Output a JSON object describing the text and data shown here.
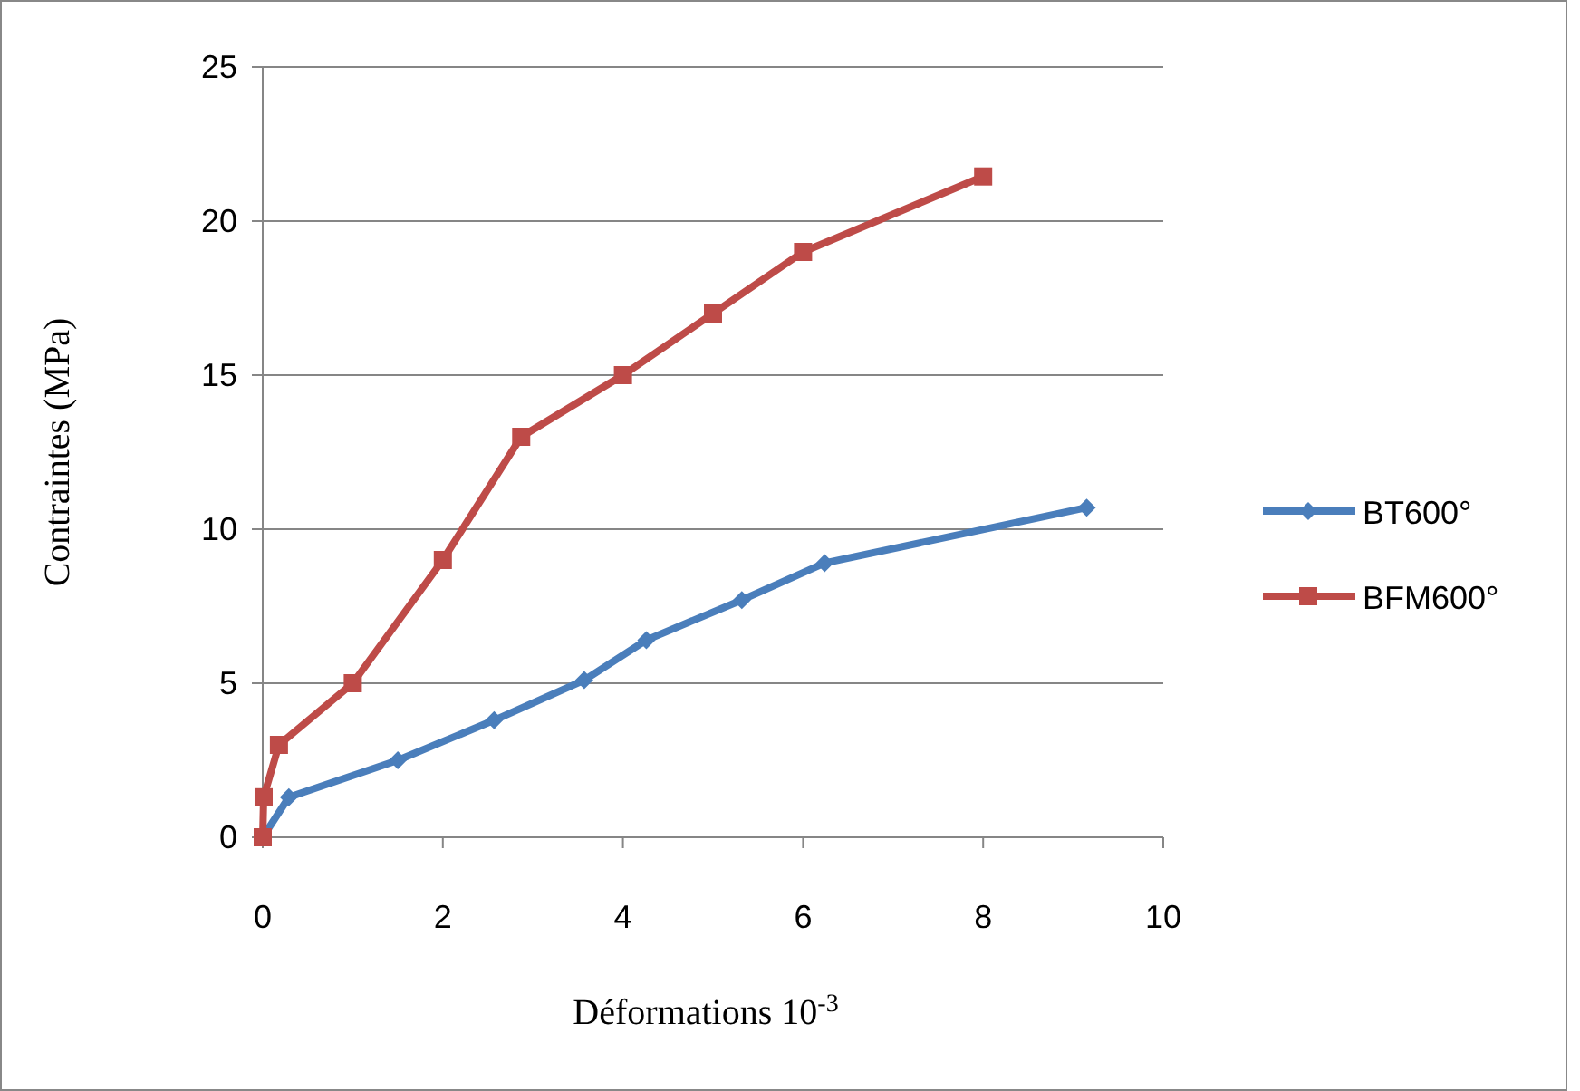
{
  "chart_data": {
    "type": "line",
    "xlabel": "Déformations 10$^{-3}$",
    "ylabel": "Contraintes (MPa)",
    "xlim": [
      0,
      10
    ],
    "xticks": [
      0,
      2,
      4,
      6,
      8,
      10
    ],
    "ylim": [
      0,
      25
    ],
    "yticks": [
      0,
      5,
      10,
      15,
      20,
      25
    ],
    "grid": "y",
    "legend": "right",
    "series": [
      {
        "name": "BT600°",
        "color": "#4a7ebb",
        "marker": "diamond",
        "x": [
          0,
          0.29,
          1.5,
          2.57,
          3.57,
          4.26,
          5.32,
          6.24,
          9.15
        ],
        "values": [
          0,
          1.3,
          2.5,
          3.8,
          5.1,
          6.4,
          7.7,
          8.9,
          10.7
        ]
      },
      {
        "name": "BFM600°",
        "color": "#be4b48",
        "marker": "square",
        "x": [
          0,
          0.01,
          0.18,
          1.0,
          2.0,
          2.87,
          4.0,
          5.0,
          6.0,
          8.0
        ],
        "values": [
          0,
          1.3,
          3.0,
          5.0,
          9.0,
          13.0,
          15.0,
          17.0,
          19.0,
          21.45
        ]
      }
    ]
  }
}
